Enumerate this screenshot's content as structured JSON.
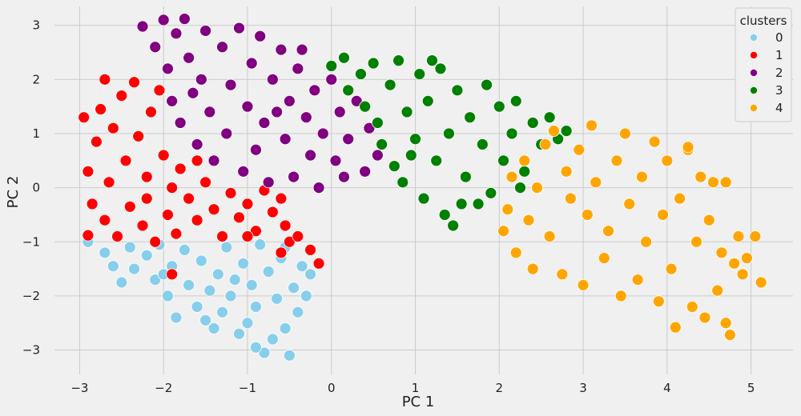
{
  "chart_data": {
    "type": "scatter",
    "xlabel": "PC 1",
    "ylabel": "PC 2",
    "xlim": [
      -3.3,
      5.5
    ],
    "ylim": [
      -3.45,
      3.35
    ],
    "xticks": [
      -3,
      -2,
      -1,
      0,
      1,
      2,
      3,
      4,
      5
    ],
    "yticks": [
      -3,
      -2,
      -1,
      0,
      1,
      2,
      3
    ],
    "grid": true,
    "legend_title": "clusters",
    "legend_position": "top-right",
    "marker_edge_color": "#ffffff",
    "series": [
      {
        "name": "0",
        "color": "#87ceeb",
        "points": [
          [
            -2.9,
            -1.0
          ],
          [
            -2.7,
            -1.2
          ],
          [
            -2.6,
            -1.45
          ],
          [
            -2.4,
            -1.1
          ],
          [
            -2.35,
            -1.5
          ],
          [
            -2.2,
            -1.25
          ],
          [
            -2.1,
            -1.7
          ],
          [
            -2.05,
            -1.05
          ],
          [
            -1.95,
            -2.0
          ],
          [
            -1.9,
            -1.45
          ],
          [
            -1.85,
            -2.4
          ],
          [
            -1.75,
            -1.15
          ],
          [
            -1.7,
            -1.8
          ],
          [
            -1.6,
            -2.2
          ],
          [
            -1.55,
            -1.35
          ],
          [
            -1.5,
            -2.45
          ],
          [
            -1.45,
            -1.9
          ],
          [
            -1.35,
            -1.6
          ],
          [
            -1.3,
            -2.3
          ],
          [
            -1.25,
            -1.1
          ],
          [
            -1.2,
            -2.0
          ],
          [
            -1.1,
            -2.7
          ],
          [
            -1.05,
            -1.4
          ],
          [
            -1.0,
            -2.5
          ],
          [
            -0.95,
            -1.8
          ],
          [
            -0.9,
            -2.2
          ],
          [
            -0.85,
            -1.05
          ],
          [
            -0.8,
            -3.05
          ],
          [
            -0.75,
            -1.55
          ],
          [
            -0.7,
            -2.8
          ],
          [
            -0.65,
            -2.05
          ],
          [
            -0.6,
            -1.3
          ],
          [
            -0.55,
            -2.6
          ],
          [
            -0.5,
            -3.1
          ],
          [
            -0.45,
            -1.85
          ],
          [
            -0.4,
            -2.3
          ],
          [
            -0.35,
            -1.45
          ],
          [
            -0.3,
            -2.0
          ],
          [
            -0.25,
            -1.6
          ],
          [
            -2.5,
            -1.75
          ],
          [
            -2.0,
            -1.6
          ],
          [
            -1.4,
            -2.6
          ],
          [
            -0.9,
            -2.95
          ],
          [
            -1.15,
            -1.7
          ],
          [
            -0.55,
            -1.1
          ]
        ]
      },
      {
        "name": "1",
        "color": "#ff0000",
        "points": [
          [
            -2.95,
            1.3
          ],
          [
            -2.9,
            0.3
          ],
          [
            -2.85,
            -0.3
          ],
          [
            -2.8,
            0.85
          ],
          [
            -2.75,
            1.45
          ],
          [
            -2.7,
            -0.6
          ],
          [
            -2.65,
            0.1
          ],
          [
            -2.6,
            1.1
          ],
          [
            -2.55,
            -0.9
          ],
          [
            -2.5,
            1.7
          ],
          [
            -2.45,
            0.5
          ],
          [
            -2.4,
            -0.35
          ],
          [
            -2.35,
            1.95
          ],
          [
            -2.3,
            0.95
          ],
          [
            -2.25,
            -0.7
          ],
          [
            -2.2,
            0.2
          ],
          [
            -2.15,
            1.4
          ],
          [
            -2.1,
            -1.0
          ],
          [
            -2.0,
            0.6
          ],
          [
            -1.95,
            -0.5
          ],
          [
            -1.9,
            0.0
          ],
          [
            -1.85,
            -0.85
          ],
          [
            -1.8,
            0.35
          ],
          [
            -1.7,
            -0.2
          ],
          [
            -1.6,
            -0.6
          ],
          [
            -1.5,
            0.1
          ],
          [
            -1.4,
            -0.4
          ],
          [
            -1.3,
            -0.9
          ],
          [
            -1.2,
            -0.1
          ],
          [
            -1.1,
            -0.55
          ],
          [
            -1.0,
            -0.3
          ],
          [
            -0.9,
            -0.8
          ],
          [
            -0.8,
            -0.05
          ],
          [
            -0.7,
            -0.45
          ],
          [
            -0.6,
            -0.2
          ],
          [
            -0.55,
            -0.7
          ],
          [
            -0.5,
            -1.0
          ],
          [
            -0.6,
            -1.2
          ],
          [
            -0.4,
            -0.9
          ],
          [
            -0.25,
            -1.15
          ],
          [
            -0.15,
            -1.4
          ],
          [
            -1.9,
            -1.6
          ],
          [
            -2.9,
            -0.88
          ],
          [
            -2.7,
            2.0
          ],
          [
            -2.2,
            -0.2
          ],
          [
            -1.0,
            -0.9
          ],
          [
            -1.6,
            0.5
          ],
          [
            -2.05,
            1.8
          ]
        ]
      },
      {
        "name": "2",
        "color": "#800080",
        "points": [
          [
            -2.25,
            2.98
          ],
          [
            -2.1,
            2.6
          ],
          [
            -2.0,
            3.1
          ],
          [
            -1.95,
            2.2
          ],
          [
            -1.9,
            1.6
          ],
          [
            -1.85,
            2.85
          ],
          [
            -1.8,
            1.2
          ],
          [
            -1.75,
            3.12
          ],
          [
            -1.7,
            2.4
          ],
          [
            -1.6,
            0.8
          ],
          [
            -1.55,
            2.0
          ],
          [
            -1.5,
            2.9
          ],
          [
            -1.45,
            1.4
          ],
          [
            -1.4,
            0.5
          ],
          [
            -1.3,
            2.6
          ],
          [
            -1.25,
            1.0
          ],
          [
            -1.2,
            1.9
          ],
          [
            -1.1,
            2.95
          ],
          [
            -1.05,
            0.3
          ],
          [
            -1.0,
            1.5
          ],
          [
            -0.95,
            2.3
          ],
          [
            -0.9,
            0.7
          ],
          [
            -0.85,
            2.8
          ],
          [
            -0.8,
            1.2
          ],
          [
            -0.75,
            0.1
          ],
          [
            -0.7,
            2.0
          ],
          [
            -0.6,
            2.55
          ],
          [
            -0.55,
            0.9
          ],
          [
            -0.5,
            1.6
          ],
          [
            -0.45,
            0.2
          ],
          [
            -0.4,
            2.2
          ],
          [
            -0.3,
            1.3
          ],
          [
            -0.25,
            0.6
          ],
          [
            -0.2,
            1.8
          ],
          [
            -0.15,
            0.0
          ],
          [
            -0.1,
            1.0
          ],
          [
            0.0,
            2.0
          ],
          [
            0.05,
            0.5
          ],
          [
            0.1,
            1.4
          ],
          [
            0.2,
            0.9
          ],
          [
            0.3,
            1.6
          ],
          [
            0.4,
            0.3
          ],
          [
            0.45,
            1.1
          ],
          [
            0.55,
            0.6
          ],
          [
            -0.35,
            2.55
          ],
          [
            -1.65,
            1.75
          ],
          [
            -0.65,
            1.4
          ],
          [
            0.15,
            0.2
          ]
        ]
      },
      {
        "name": "3",
        "color": "#008000",
        "points": [
          [
            0.0,
            2.25
          ],
          [
            0.15,
            2.4
          ],
          [
            0.2,
            1.8
          ],
          [
            0.35,
            2.1
          ],
          [
            0.4,
            1.5
          ],
          [
            0.5,
            2.3
          ],
          [
            0.55,
            1.2
          ],
          [
            0.6,
            0.8
          ],
          [
            0.7,
            1.9
          ],
          [
            0.75,
            0.4
          ],
          [
            0.8,
            2.35
          ],
          [
            0.85,
            0.1
          ],
          [
            0.9,
            1.4
          ],
          [
            1.0,
            0.9
          ],
          [
            1.05,
            2.1
          ],
          [
            1.1,
            -0.2
          ],
          [
            1.15,
            1.6
          ],
          [
            1.25,
            0.5
          ],
          [
            1.3,
            2.2
          ],
          [
            1.35,
            -0.5
          ],
          [
            1.4,
            1.0
          ],
          [
            1.45,
            -0.7
          ],
          [
            1.5,
            1.8
          ],
          [
            1.6,
            0.2
          ],
          [
            1.65,
            1.3
          ],
          [
            1.75,
            -0.3
          ],
          [
            1.8,
            0.8
          ],
          [
            1.85,
            1.9
          ],
          [
            1.9,
            -0.1
          ],
          [
            2.0,
            1.5
          ],
          [
            2.05,
            0.5
          ],
          [
            2.15,
            1.0
          ],
          [
            2.2,
            1.6
          ],
          [
            2.3,
            0.3
          ],
          [
            2.4,
            1.2
          ],
          [
            2.5,
            0.8
          ],
          [
            2.6,
            1.3
          ],
          [
            2.7,
            0.9
          ],
          [
            2.8,
            1.05
          ],
          [
            1.2,
            2.35
          ],
          [
            0.95,
            0.6
          ],
          [
            1.55,
            -0.3
          ],
          [
            2.25,
            0.0
          ]
        ]
      },
      {
        "name": "4",
        "color": "#ffa500",
        "points": [
          [
            2.05,
            -0.8
          ],
          [
            2.1,
            -0.4
          ],
          [
            2.15,
            0.2
          ],
          [
            2.2,
            -1.2
          ],
          [
            2.3,
            0.5
          ],
          [
            2.35,
            -0.6
          ],
          [
            2.4,
            -1.5
          ],
          [
            2.45,
            0.0
          ],
          [
            2.55,
            0.8
          ],
          [
            2.6,
            -0.9
          ],
          [
            2.65,
            1.05
          ],
          [
            2.75,
            -1.6
          ],
          [
            2.8,
            0.3
          ],
          [
            2.85,
            -0.2
          ],
          [
            2.95,
            0.7
          ],
          [
            3.0,
            -1.8
          ],
          [
            3.05,
            -0.5
          ],
          [
            3.1,
            1.15
          ],
          [
            3.15,
            0.1
          ],
          [
            3.25,
            -1.3
          ],
          [
            3.3,
            -0.8
          ],
          [
            3.4,
            0.5
          ],
          [
            3.45,
            -2.0
          ],
          [
            3.5,
            1.0
          ],
          [
            3.55,
            -0.3
          ],
          [
            3.65,
            -1.7
          ],
          [
            3.7,
            0.2
          ],
          [
            3.75,
            -1.0
          ],
          [
            3.85,
            0.85
          ],
          [
            3.9,
            -2.1
          ],
          [
            3.95,
            -0.5
          ],
          [
            4.0,
            0.5
          ],
          [
            4.05,
            -1.5
          ],
          [
            4.1,
            -2.58
          ],
          [
            4.15,
            -0.2
          ],
          [
            4.25,
            0.7
          ],
          [
            4.3,
            -2.2
          ],
          [
            4.35,
            -1.0
          ],
          [
            4.4,
            0.2
          ],
          [
            4.45,
            -2.4
          ],
          [
            4.5,
            -0.6
          ],
          [
            4.55,
            0.1
          ],
          [
            4.6,
            -1.9
          ],
          [
            4.65,
            -1.2
          ],
          [
            4.7,
            -2.5
          ],
          [
            4.75,
            -2.72
          ],
          [
            4.8,
            -1.4
          ],
          [
            4.85,
            -0.9
          ],
          [
            4.95,
            -1.3
          ],
          [
            5.05,
            -0.9
          ],
          [
            5.12,
            -1.75
          ],
          [
            4.9,
            -1.6
          ],
          [
            4.7,
            0.1
          ],
          [
            4.25,
            0.75
          ]
        ]
      }
    ]
  }
}
